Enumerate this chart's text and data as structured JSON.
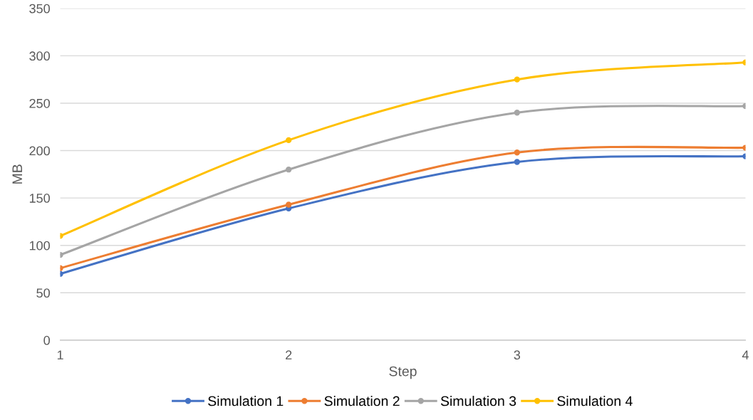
{
  "chart_data": {
    "type": "line",
    "xlabel": "Step",
    "ylabel": "MB",
    "x": [
      1,
      2,
      3,
      4
    ],
    "series": [
      {
        "name": "Simulation 1",
        "color": "#4472c4",
        "values": [
          70,
          139,
          188,
          194
        ]
      },
      {
        "name": "Simulation 2",
        "color": "#ed7d31",
        "values": [
          76,
          143,
          198,
          203
        ]
      },
      {
        "name": "Simulation 3",
        "color": "#a5a5a5",
        "values": [
          90,
          180,
          240,
          247
        ]
      },
      {
        "name": "Simulation 4",
        "color": "#ffc000",
        "values": [
          110,
          211,
          275,
          293
        ]
      }
    ],
    "xlim": [
      1,
      4
    ],
    "xticks": [
      1,
      2,
      3,
      4
    ],
    "ylim": [
      0,
      350
    ],
    "yticks": [
      0,
      50,
      100,
      150,
      200,
      250,
      300,
      350
    ],
    "grid": "y",
    "legend": "bottom",
    "marker": "circle",
    "line_style": "solid"
  }
}
